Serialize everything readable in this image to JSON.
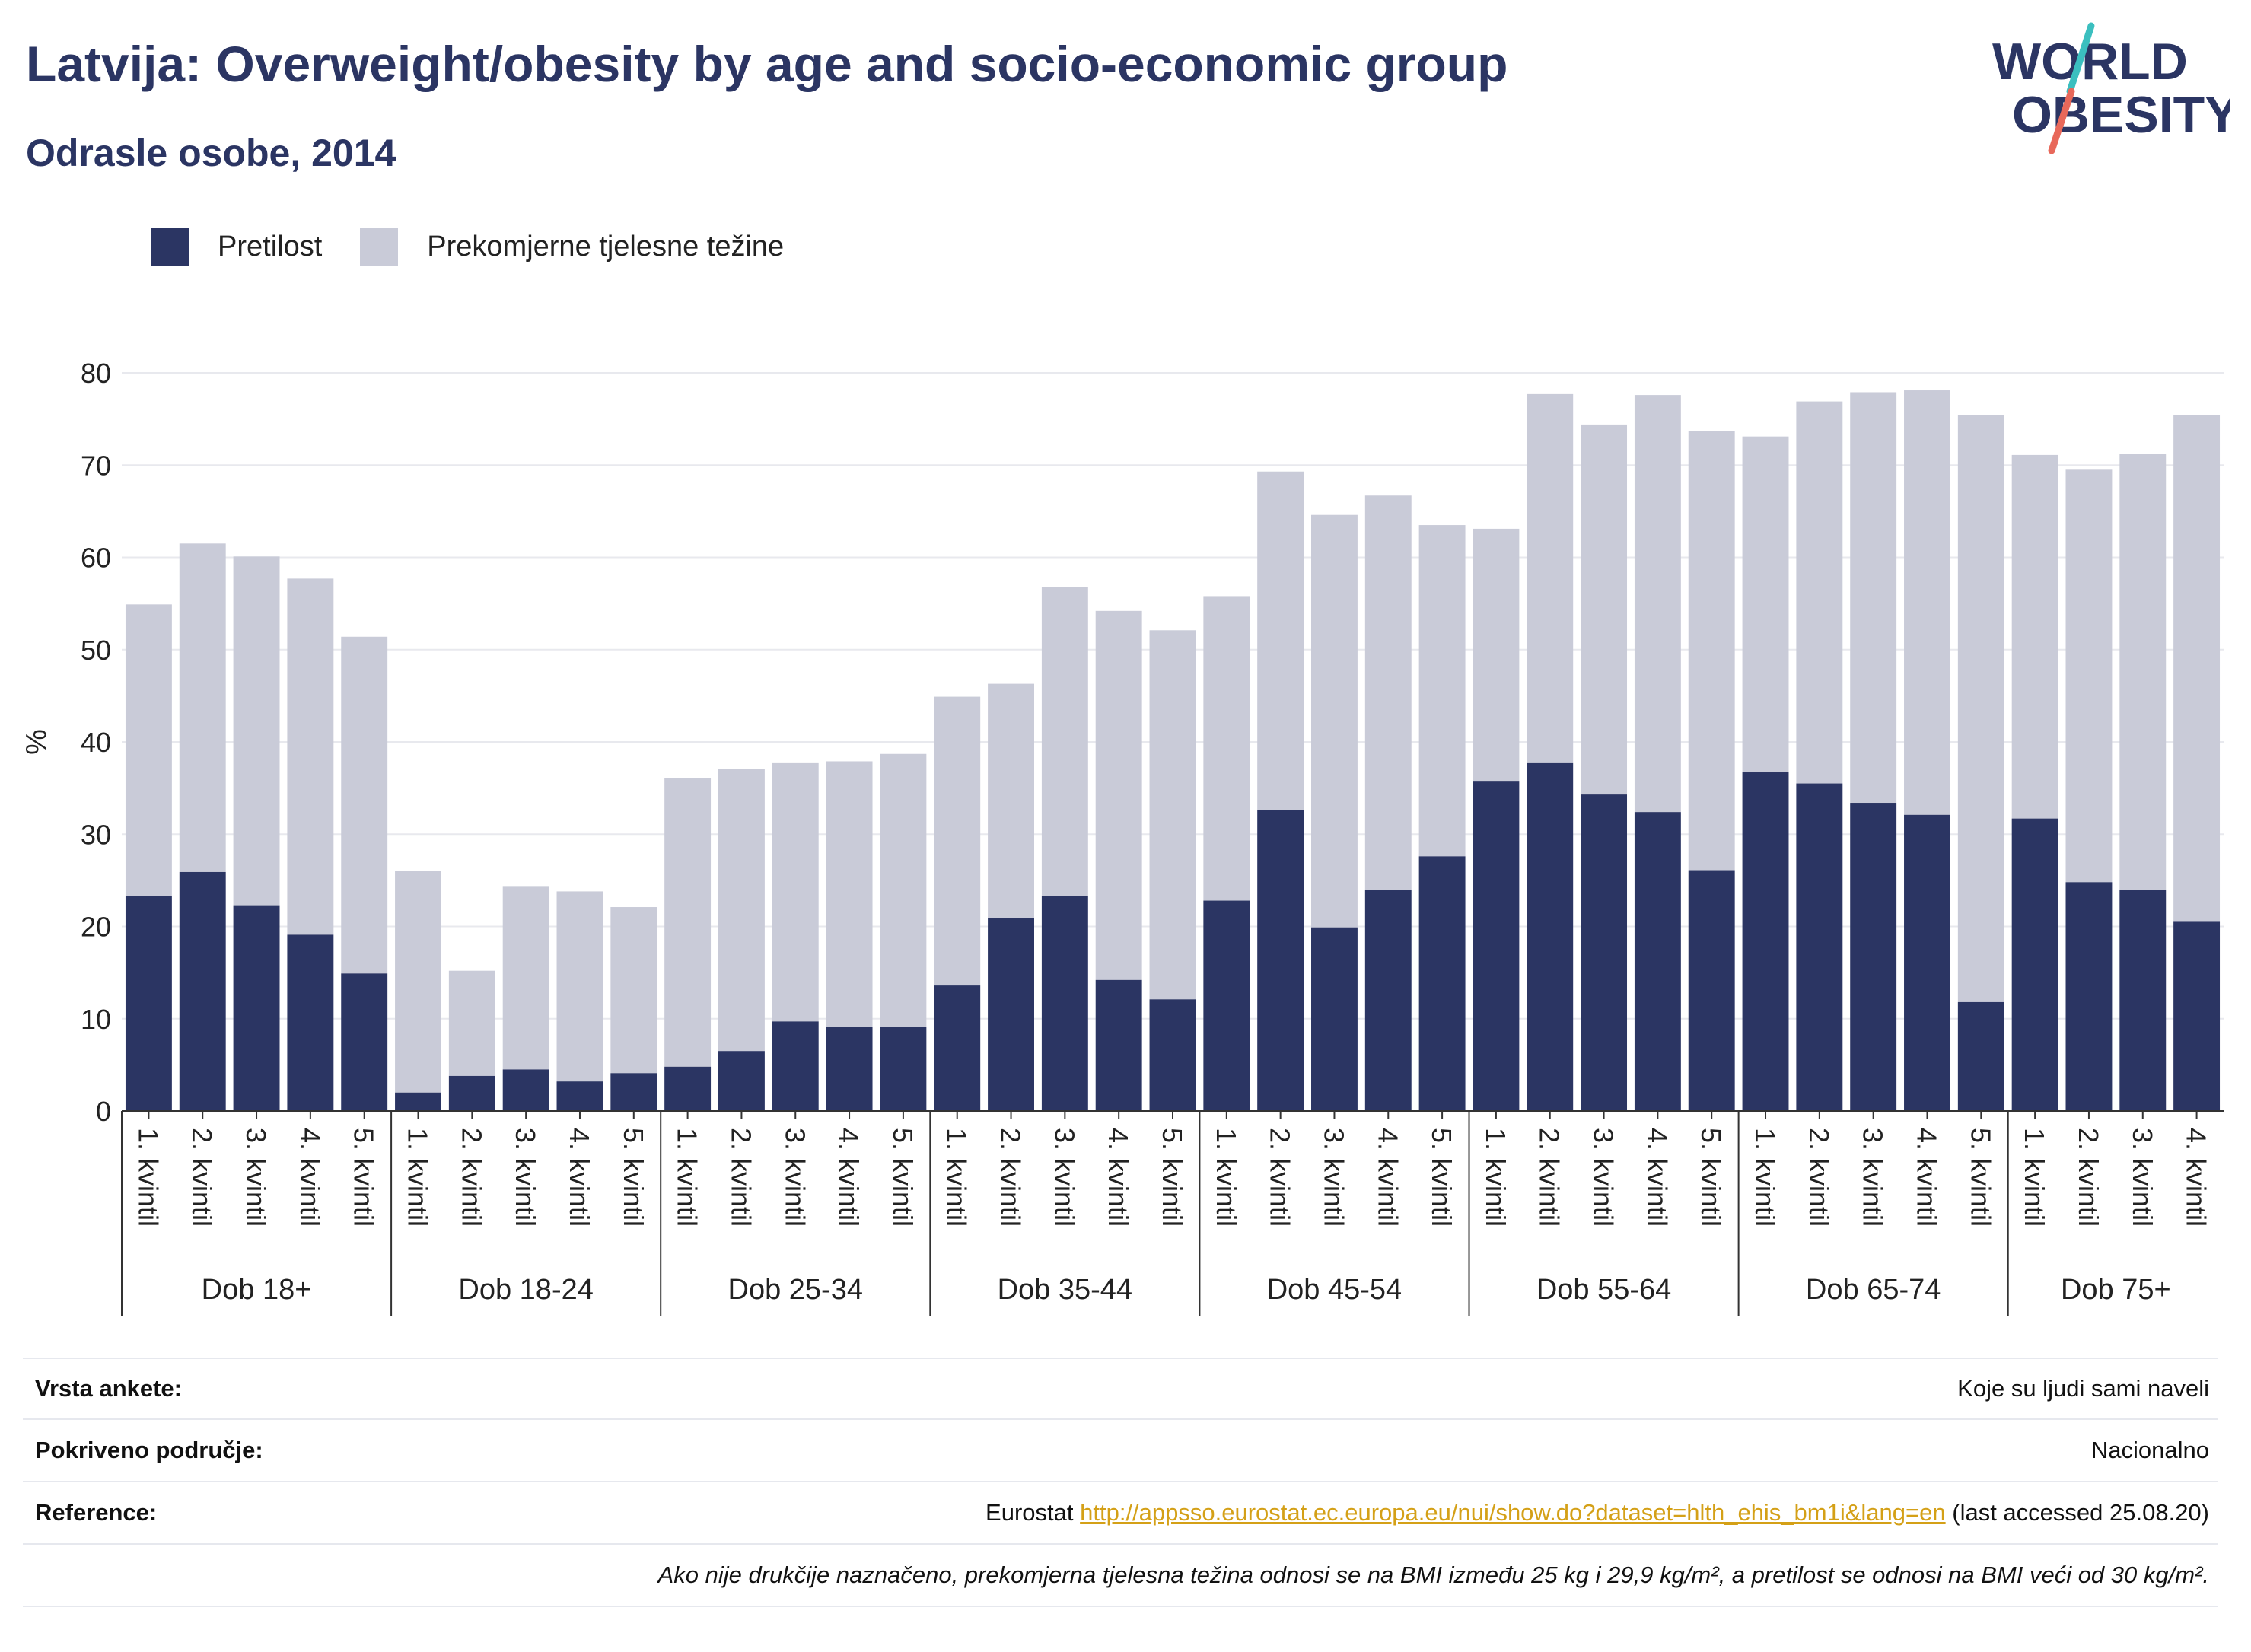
{
  "header": {
    "title": "Latvija: Overweight/obesity by age and socio-economic group",
    "subtitle": "Odrasle osobe, 2014"
  },
  "logo": {
    "line1": "WORLD",
    "line2": "OBESITY"
  },
  "colors": {
    "obesity": "#2b3563",
    "overweight": "#c9cbd8",
    "title": "#2b3563",
    "link": "#d4a017",
    "logo_slash_teal": "#3bbfbf",
    "logo_slash_coral": "#e8685a"
  },
  "chart_data": {
    "type": "bar",
    "stacked": true,
    "ylabel": "%",
    "ylim": [
      0,
      80
    ],
    "yticks": [
      0,
      10,
      20,
      30,
      40,
      50,
      60,
      70,
      80
    ],
    "grid": true,
    "legend_position": "top-left",
    "groups": [
      {
        "label": "Dob 18+",
        "categories": [
          "1. kvintil",
          "2. kvintil",
          "3. kvintil",
          "4. kvintil",
          "5. kvintil"
        ]
      },
      {
        "label": "Dob 18-24",
        "categories": [
          "1. kvintil",
          "2. kvintil",
          "3. kvintil",
          "4. kvintil",
          "5. kvintil"
        ]
      },
      {
        "label": "Dob 25-34",
        "categories": [
          "1. kvintil",
          "2. kvintil",
          "3. kvintil",
          "4. kvintil",
          "5. kvintil"
        ]
      },
      {
        "label": "Dob 35-44",
        "categories": [
          "1. kvintil",
          "2. kvintil",
          "3. kvintil",
          "4. kvintil",
          "5. kvintil"
        ]
      },
      {
        "label": "Dob 45-54",
        "categories": [
          "1. kvintil",
          "2. kvintil",
          "3. kvintil",
          "4. kvintil",
          "5. kvintil"
        ]
      },
      {
        "label": "Dob 55-64",
        "categories": [
          "1. kvintil",
          "2. kvintil",
          "3. kvintil",
          "4. kvintil",
          "5. kvintil"
        ]
      },
      {
        "label": "Dob 65-74",
        "categories": [
          "1. kvintil",
          "2. kvintil",
          "3. kvintil",
          "4. kvintil",
          "5. kvintil"
        ]
      },
      {
        "label": "Dob 75+",
        "categories": [
          "1. kvintil",
          "2. kvintil",
          "3. kvintil",
          "4. kvintil"
        ]
      }
    ],
    "series": [
      {
        "name": "Pretilost",
        "values": [
          23.3,
          25.9,
          22.3,
          19.1,
          14.9,
          2.0,
          3.8,
          4.5,
          3.2,
          4.1,
          4.8,
          6.5,
          9.7,
          9.1,
          9.1,
          13.6,
          20.9,
          23.3,
          14.2,
          12.1,
          22.8,
          32.6,
          19.9,
          24.0,
          27.6,
          35.7,
          37.7,
          34.3,
          32.4,
          26.1,
          36.7,
          35.5,
          33.4,
          32.1,
          11.8,
          31.7,
          24.8,
          24.0,
          20.5
        ]
      },
      {
        "name": "Prekomjerne tjelesne težine",
        "values": [
          31.6,
          35.6,
          37.8,
          38.6,
          36.5,
          24.0,
          11.4,
          19.8,
          20.6,
          18.0,
          31.3,
          30.6,
          28.0,
          28.8,
          29.6,
          31.3,
          25.4,
          33.5,
          40.0,
          40.0,
          33.0,
          36.7,
          44.7,
          42.7,
          35.9,
          27.4,
          40.0,
          40.1,
          45.2,
          47.6,
          36.4,
          41.4,
          44.5,
          46.0,
          63.6,
          39.4,
          44.7,
          47.2,
          54.9
        ]
      }
    ]
  },
  "info": {
    "survey_label": "Vrsta ankete:",
    "survey_value": "Koje su ljudi sami naveli",
    "coverage_label": "Pokriveno područje:",
    "coverage_value": "Nacionalno",
    "reference_label": "Reference:",
    "reference_prefix": "Eurostat",
    "reference_url": "http://appsso.eurostat.ec.europa.eu/nui/show.do?dataset=hlth_ehis_bm1i&lang=en",
    "reference_suffix": "(last accessed 25.08.20)",
    "note": "Ako nije drukčije naznačeno, prekomjerna tjelesna težina odnosi se na BMI između 25 kg i 29,9 kg/m², a pretilost se odnosi na BMI veći od 30 kg/m²."
  }
}
